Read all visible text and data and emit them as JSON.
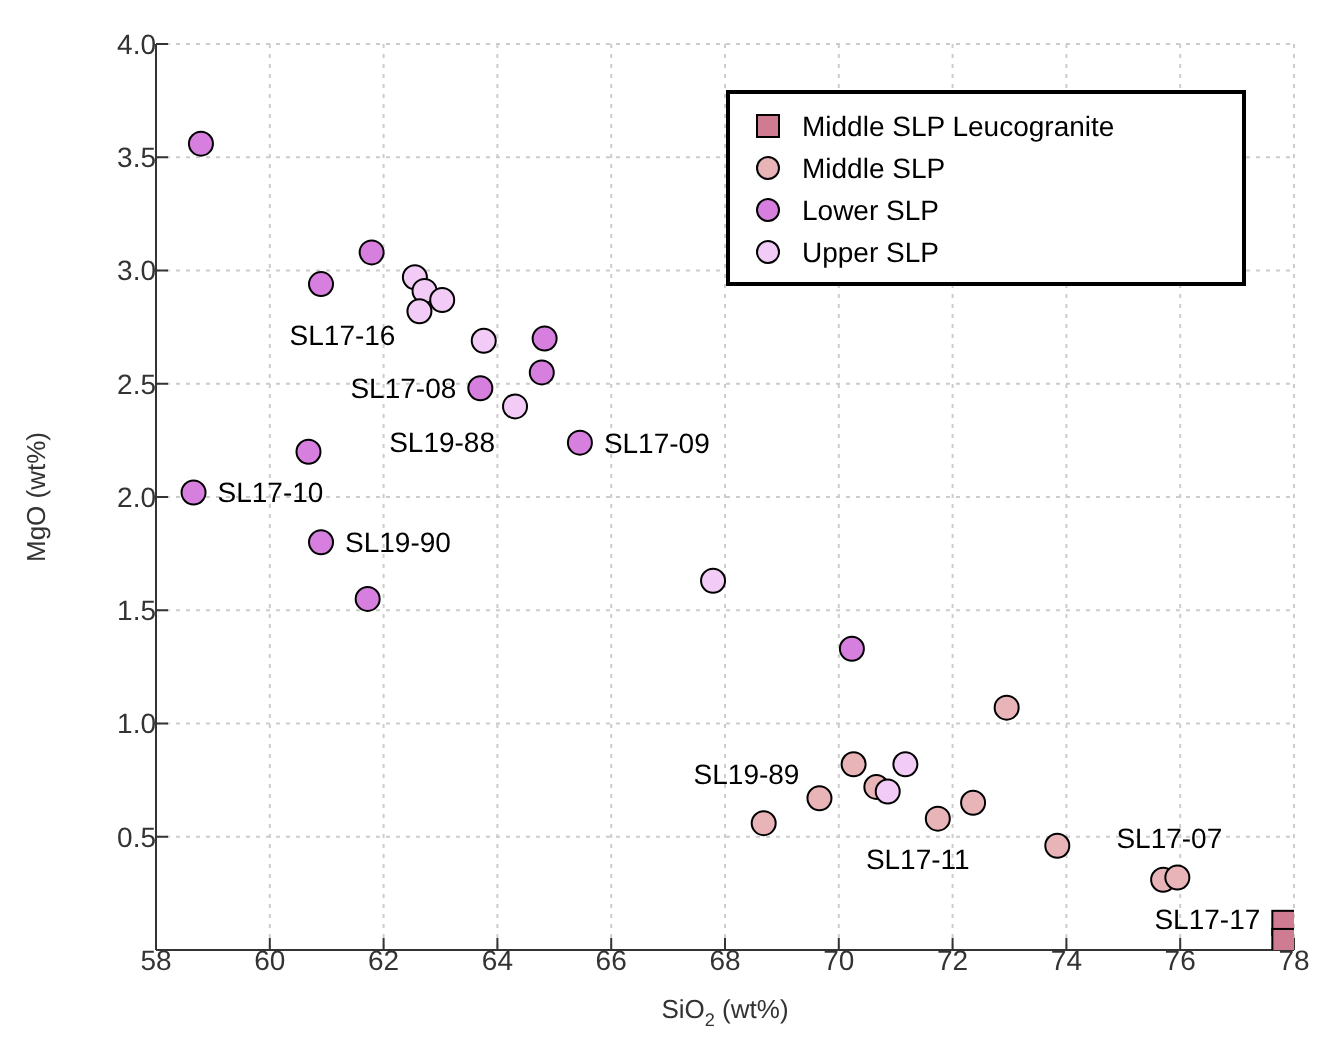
{
  "chart_data": {
    "type": "scatter",
    "xlabel": "SiO$_{2}$ (wt%)",
    "ylabel": "MgO (wt%)",
    "xlim": [
      58,
      78
    ],
    "xticks": [
      58,
      60,
      62,
      64,
      66,
      68,
      70,
      72,
      74,
      76,
      78
    ],
    "ylim": [
      0,
      4
    ],
    "yticks": [
      0.5,
      {
        "value": 1,
        "label": "1.0"
      },
      1.5,
      {
        "value": 2,
        "label": "2.0"
      },
      2.5,
      {
        "value": 3,
        "label": "3.0"
      },
      3.5,
      {
        "value": 4,
        "label": "4.0"
      }
    ],
    "grid": true,
    "legend": "top right",
    "marker": "circle",
    "series": [
      {
        "name": "Middle SLP Leucogranite",
        "color": "#cf7b91",
        "marker": "square",
        "x": [
          77.83,
          77.83
        ],
        "values": [
          0.12,
          0.04
        ]
      },
      {
        "name": "Middle SLP",
        "color": "#e8b4b8",
        "x": [
          72.95,
          70.26,
          70.66,
          69.66,
          71.74,
          72.36,
          68.68,
          73.84,
          75.7,
          75.95
        ],
        "values": [
          1.07,
          0.82,
          0.72,
          0.67,
          0.58,
          0.65,
          0.56,
          0.46,
          0.31,
          0.32
        ]
      },
      {
        "name": "Lower SLP",
        "color": "#d77fdf",
        "x": [
          58.79,
          60.9,
          61.79,
          64.83,
          64.78,
          63.7,
          65.45,
          60.68,
          58.66,
          60.9,
          61.72,
          70.23
        ],
        "values": [
          3.56,
          2.94,
          3.08,
          2.7,
          2.55,
          2.48,
          2.24,
          2.2,
          2.02,
          1.8,
          1.55,
          1.33
        ]
      },
      {
        "name": "Upper SLP",
        "color": "#f2cbf6",
        "x": [
          62.55,
          62.72,
          63.03,
          62.63,
          63.76,
          64.31,
          67.79,
          71.17,
          70.86
        ],
        "values": [
          2.97,
          2.91,
          2.87,
          2.82,
          2.69,
          2.4,
          1.63,
          0.82,
          0.7
        ]
      }
    ],
    "annotations": [
      {
        "text": "SL17-16",
        "x": 62.63,
        "y": 2.82
      },
      {
        "text": "SL17-08",
        "x": 63.7,
        "y": 2.48
      },
      {
        "text": "SL19-88",
        "x": 64.31,
        "y": 2.4
      },
      {
        "text": "SL17-09",
        "x": 65.45,
        "y": 2.24
      },
      {
        "text": "SL17-10",
        "x": 58.66,
        "y": 2.02
      },
      {
        "text": "SL19-90",
        "x": 60.9,
        "y": 1.8
      },
      {
        "text": "SL19-89",
        "x": 69.66,
        "y": 0.67
      },
      {
        "text": "SL17-11",
        "x": 71.74,
        "y": 0.58
      },
      {
        "text": "SL17-07",
        "x": 75.95,
        "y": 0.32
      },
      {
        "text": "SL17-17",
        "x": 77.83,
        "y": 0.12
      }
    ]
  }
}
